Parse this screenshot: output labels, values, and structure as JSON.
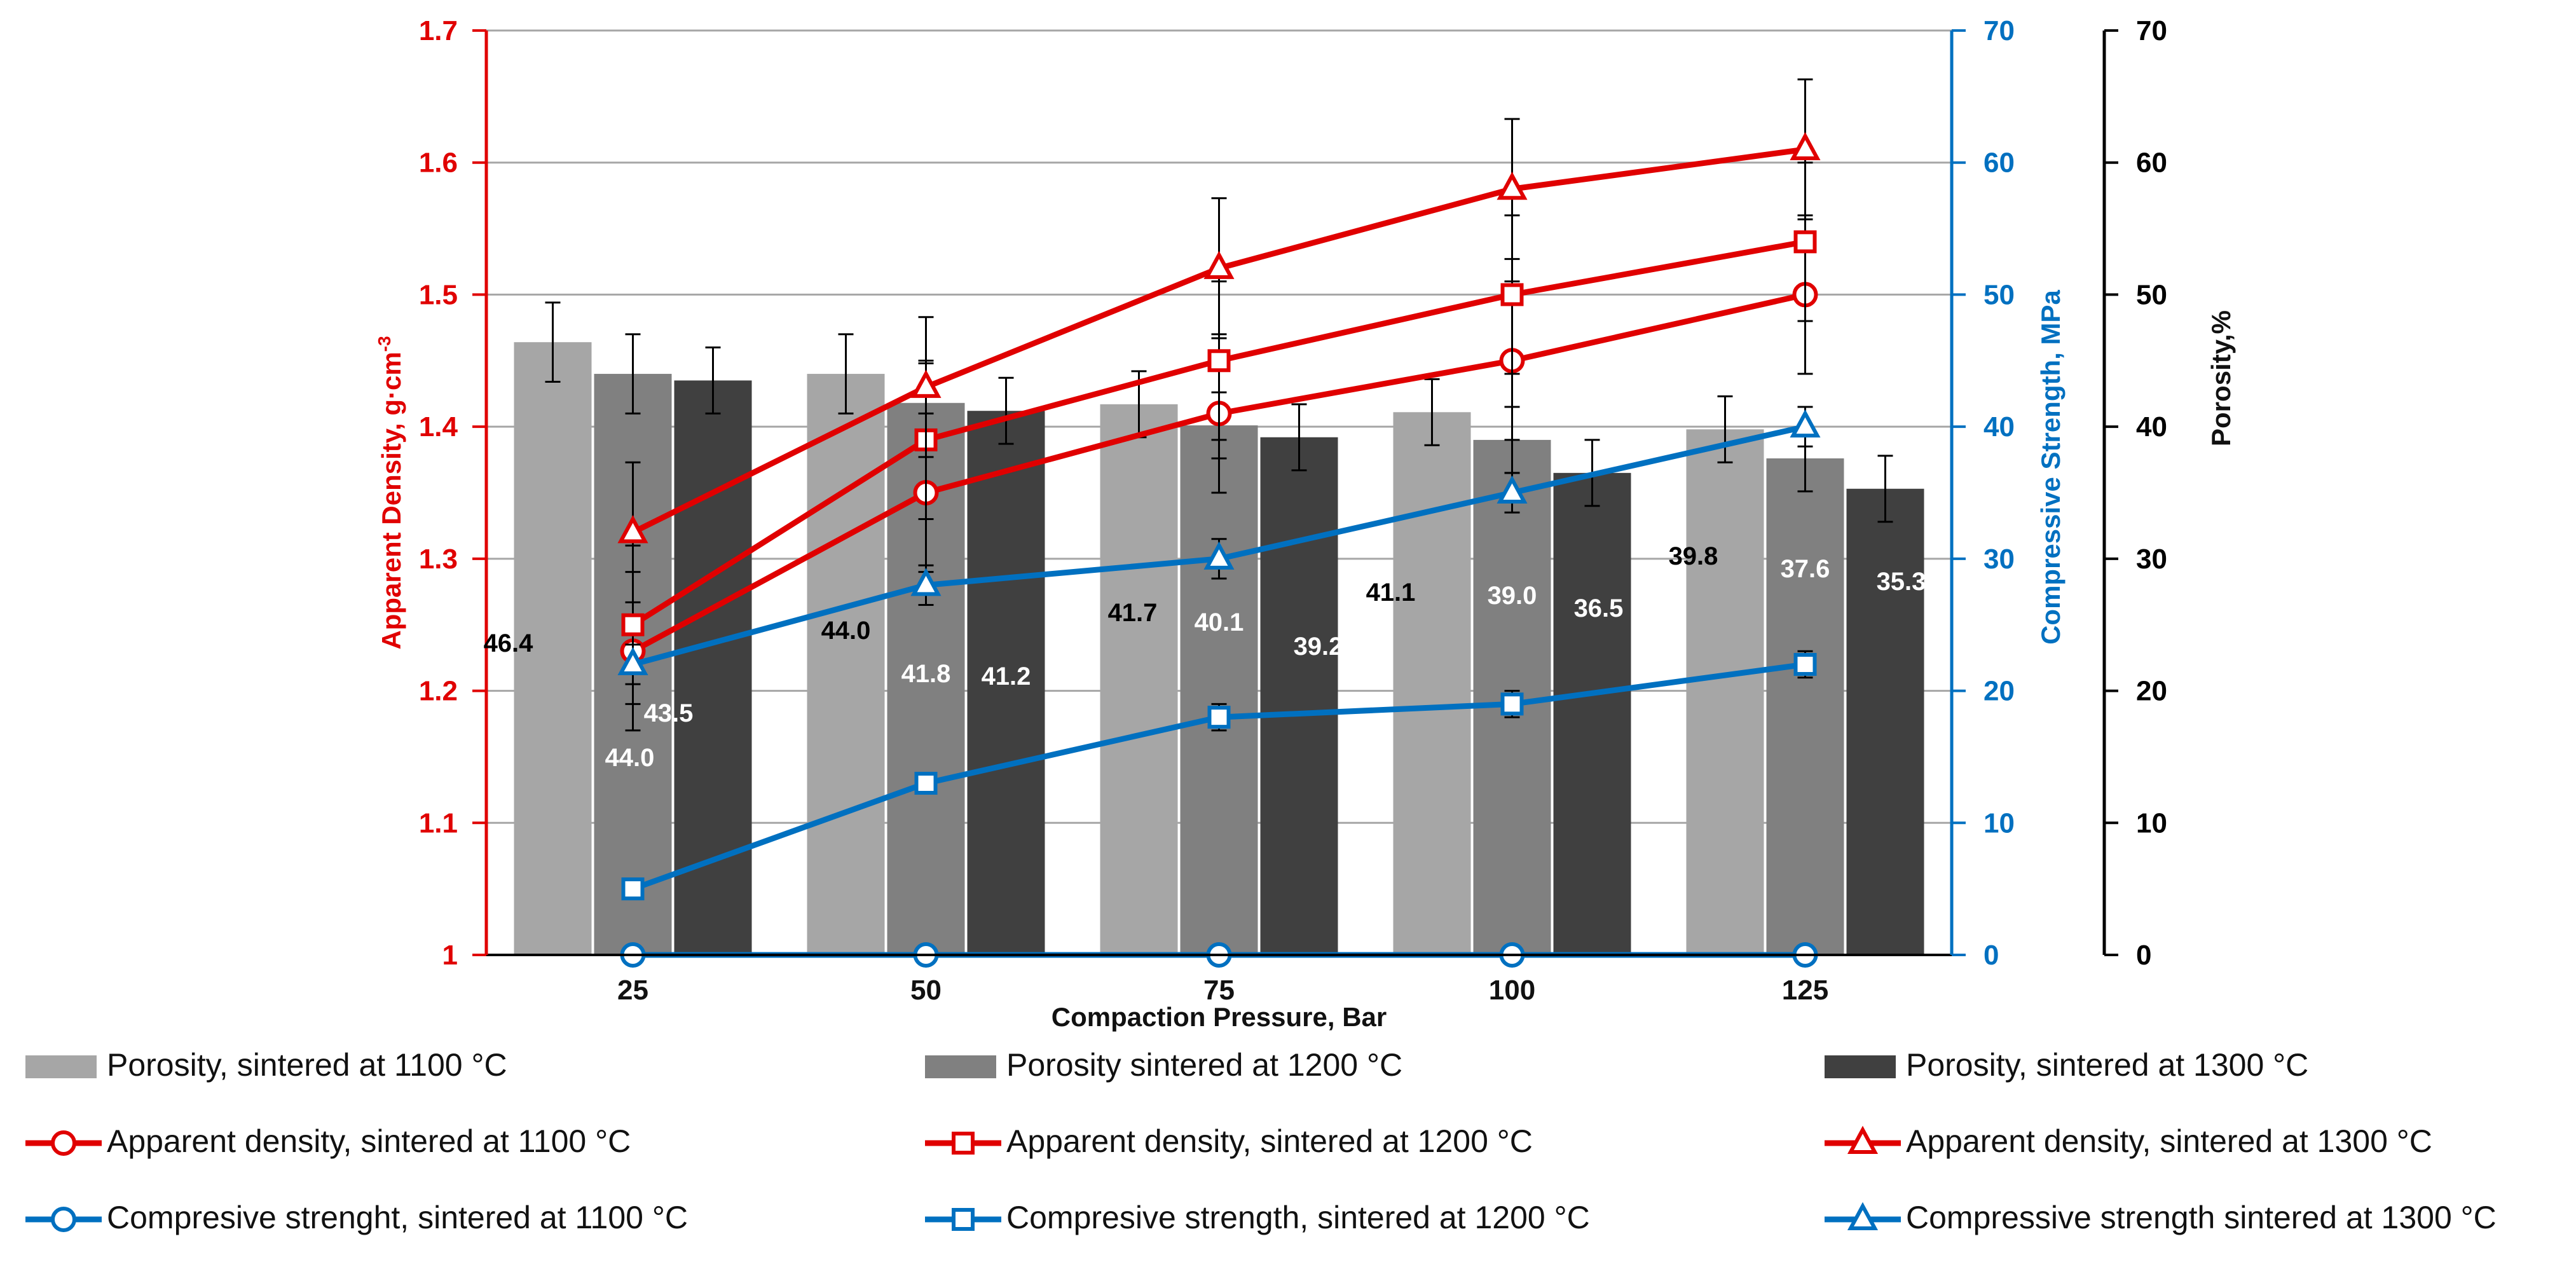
{
  "chart_data": {
    "type": "bar+line",
    "title": "",
    "xlabel": "Compaction Pressure, Bar",
    "categories": [
      "25",
      "50",
      "75",
      "100",
      "125"
    ],
    "axes": {
      "left": {
        "label": "Apparent Density, g·cm",
        "label_superscript": "-3",
        "range": [
          1,
          1.7
        ],
        "ticks": [
          "1",
          "1.1",
          "1.2",
          "1.3",
          "1.4",
          "1.5",
          "1.6",
          "1.7"
        ],
        "color": "#e00000"
      },
      "right_inner": {
        "label": "Compressive Strength, MPa",
        "range": [
          0,
          70
        ],
        "ticks": [
          "0",
          "10",
          "20",
          "30",
          "40",
          "50",
          "60",
          "70"
        ],
        "color": "#0070c0"
      },
      "right_outer": {
        "label": "Porosity,%",
        "range": [
          0,
          70
        ],
        "ticks": [
          "0",
          "10",
          "20",
          "30",
          "40",
          "50",
          "60",
          "70"
        ],
        "color": "#000000"
      }
    },
    "grid": true,
    "bar_series": [
      {
        "name": "Porosity, sintered at 1100 °C",
        "axis": "right_outer",
        "color": "#a6a6a6",
        "label_color": "#000000",
        "values": [
          46.4,
          44.0,
          41.7,
          41.1,
          39.8
        ],
        "labels": [
          "46.4",
          "44.0",
          "41.7",
          "41.1",
          "39.8"
        ],
        "error": [
          3.0,
          3.0,
          2.5,
          2.5,
          2.5
        ]
      },
      {
        "name": "Porosity sintered at 1200 °C",
        "axis": "right_outer",
        "color": "#808080",
        "label_color": "#ffffff",
        "values": [
          44.0,
          41.8,
          40.1,
          39.0,
          37.6
        ],
        "labels": [
          "44.0",
          "41.8",
          "40.1",
          "39.0",
          "37.6"
        ],
        "error": [
          3.0,
          3.0,
          2.5,
          2.5,
          2.5
        ]
      },
      {
        "name": "Porosity, sintered at 1300 °C",
        "axis": "right_outer",
        "color": "#404040",
        "label_color": "#ffffff",
        "values": [
          43.5,
          41.2,
          39.2,
          36.5,
          35.3
        ],
        "labels": [
          "43.5",
          "41.2",
          "39.2",
          "36.5",
          "35.3"
        ],
        "error": [
          2.5,
          2.5,
          2.5,
          2.5,
          2.5
        ]
      }
    ],
    "line_series": [
      {
        "name": "Apparent density, sintered at 1100 °C",
        "axis": "left",
        "color": "#e00000",
        "marker": "circle",
        "values": [
          1.23,
          1.35,
          1.41,
          1.45,
          1.5
        ],
        "error": [
          0.06,
          0.06,
          0.06,
          0.06,
          0.06
        ]
      },
      {
        "name": "Apparent density, sintered at 1200 °C",
        "axis": "left",
        "color": "#e00000",
        "marker": "square",
        "values": [
          1.25,
          1.39,
          1.45,
          1.5,
          1.54
        ],
        "error": [
          0.06,
          0.06,
          0.06,
          0.06,
          0.06
        ]
      },
      {
        "name": "Apparent density, sintered at 1300 °C",
        "axis": "left",
        "color": "#e00000",
        "marker": "triangle",
        "values": [
          1.32,
          1.43,
          1.52,
          1.58,
          1.61
        ],
        "error": [
          0.053,
          0.053,
          0.053,
          0.053,
          0.053
        ]
      },
      {
        "name": "Compresive strenght, sintered at 1100 °C",
        "axis": "right_inner",
        "color": "#0070c0",
        "marker": "circle",
        "values": [
          0,
          0,
          0,
          0,
          0
        ],
        "error": [
          0,
          0,
          0,
          0,
          0
        ]
      },
      {
        "name": "Compresive strength, sintered at 1200 °C",
        "axis": "right_inner",
        "color": "#0070c0",
        "marker": "square",
        "values": [
          5,
          13,
          18,
          19,
          22
        ],
        "error": [
          0,
          0,
          1,
          1,
          1
        ]
      },
      {
        "name": "Compressive strength sintered at 1300 °C",
        "axis": "right_inner",
        "color": "#0070c0",
        "marker": "triangle",
        "values": [
          22,
          28,
          30,
          35,
          40
        ],
        "error": [
          1.5,
          1.5,
          1.5,
          1.5,
          1.5
        ]
      }
    ]
  },
  "legend": {
    "rows": [
      [
        {
          "label": "Porosity, sintered at 1100 °C",
          "kind": "bar",
          "color": "#a6a6a6"
        },
        {
          "label": "Porosity sintered at 1200 °C",
          "kind": "bar",
          "color": "#808080"
        },
        {
          "label": "Porosity, sintered at 1300 °C",
          "kind": "bar",
          "color": "#404040"
        }
      ],
      [
        {
          "label": "Apparent density, sintered at 1100 °C",
          "kind": "line",
          "color": "#e00000",
          "marker": "circle"
        },
        {
          "label": "Apparent density, sintered at 1200 °C",
          "kind": "line",
          "color": "#e00000",
          "marker": "square"
        },
        {
          "label": "Apparent density, sintered at 1300 °C",
          "kind": "line",
          "color": "#e00000",
          "marker": "triangle"
        }
      ],
      [
        {
          "label": "Compresive strenght, sintered at 1100 °C",
          "kind": "line",
          "color": "#0070c0",
          "marker": "circle"
        },
        {
          "label": "Compresive strength, sintered at 1200 °C",
          "kind": "line",
          "color": "#0070c0",
          "marker": "square"
        },
        {
          "label": "Compressive strength sintered at 1300 °C",
          "kind": "line",
          "color": "#0070c0",
          "marker": "triangle"
        }
      ]
    ]
  }
}
